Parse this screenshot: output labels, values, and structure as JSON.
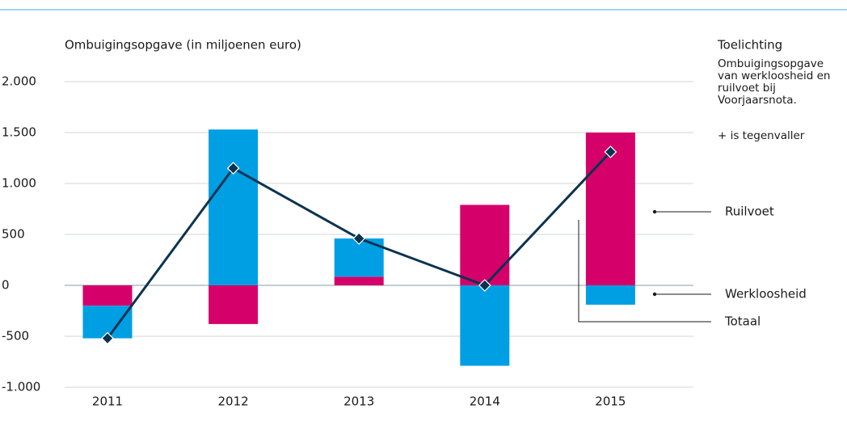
{
  "chart_data": {
    "type": "bar",
    "title": "Ombuigingsopgave (in miljoenen euro)",
    "side_title": "Toelichting",
    "side_text": "Ombuigingsopgave van werkloosheid en ruilvoet bij Voorjaarsnota.",
    "side_note": "+ is tegenvaller",
    "stacked": true,
    "categories": [
      "2011",
      "2012",
      "2013",
      "2014",
      "2015"
    ],
    "series": [
      {
        "name": "Ruilvoet",
        "color": "#d6006b",
        "values": [
          -200,
          -380,
          85,
          790,
          1500
        ]
      },
      {
        "name": "Werkloosheid",
        "color": "#009fe3",
        "values": [
          -320,
          1530,
          375,
          -790,
          -190
        ]
      },
      {
        "name": "Totaal",
        "color": "#0b3350",
        "type": "line",
        "values": [
          -520,
          1150,
          460,
          0,
          1310
        ]
      }
    ],
    "ylim": [
      -1000,
      2000
    ],
    "yticks": [
      {
        "value": -1000,
        "label": "-1.000"
      },
      {
        "value": -500,
        "label": "-500"
      },
      0,
      500,
      {
        "value": 1000,
        "label": "1.000"
      },
      {
        "value": 1500,
        "label": "1.500"
      },
      {
        "value": 2000,
        "label": "2.000"
      }
    ],
    "grid": true
  }
}
